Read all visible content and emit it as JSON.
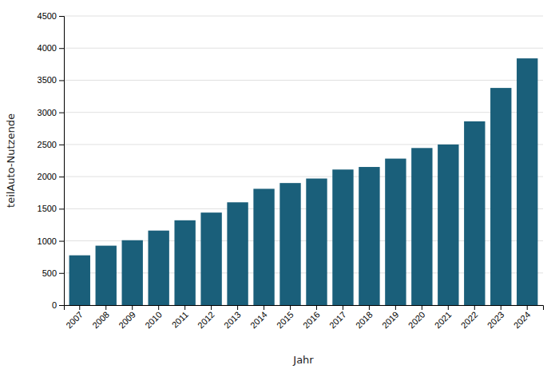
{
  "chart_data": {
    "type": "bar",
    "xlabel": "Jahr",
    "ylabel": "teilAuto-Nutzende",
    "categories": [
      "2007",
      "2008",
      "2009",
      "2010",
      "2011",
      "2012",
      "2013",
      "2014",
      "2015",
      "2016",
      "2017",
      "2018",
      "2019",
      "2020",
      "2021",
      "2022",
      "2023",
      "2024"
    ],
    "values": [
      775,
      925,
      1010,
      1160,
      1320,
      1440,
      1600,
      1810,
      1900,
      1970,
      2110,
      2150,
      2280,
      2445,
      2500,
      2860,
      3380,
      3840
    ],
    "color": "#1a5f7a",
    "ylim": [
      0,
      4500
    ],
    "yticks": [
      0,
      500,
      1000,
      1500,
      2000,
      2500,
      3000,
      3500,
      4000,
      4500
    ],
    "grid": true
  }
}
